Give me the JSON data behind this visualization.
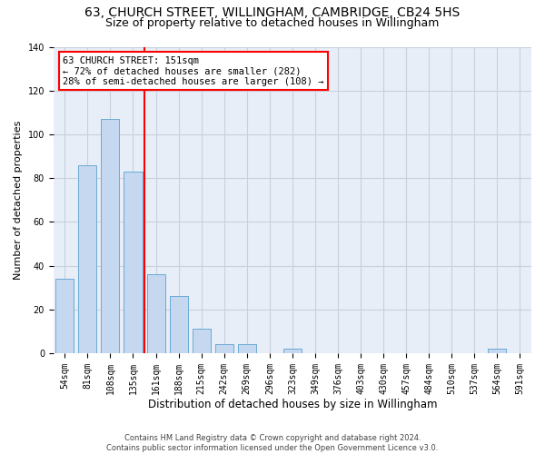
{
  "title1": "63, CHURCH STREET, WILLINGHAM, CAMBRIDGE, CB24 5HS",
  "title2": "Size of property relative to detached houses in Willingham",
  "xlabel": "Distribution of detached houses by size in Willingham",
  "ylabel": "Number of detached properties",
  "footer1": "Contains HM Land Registry data © Crown copyright and database right 2024.",
  "footer2": "Contains public sector information licensed under the Open Government Licence v3.0.",
  "bar_labels": [
    "54sqm",
    "81sqm",
    "108sqm",
    "135sqm",
    "161sqm",
    "188sqm",
    "215sqm",
    "242sqm",
    "269sqm",
    "296sqm",
    "323sqm",
    "349sqm",
    "376sqm",
    "403sqm",
    "430sqm",
    "457sqm",
    "484sqm",
    "510sqm",
    "537sqm",
    "564sqm",
    "591sqm"
  ],
  "bar_values": [
    34,
    86,
    107,
    83,
    36,
    26,
    11,
    4,
    4,
    0,
    2,
    0,
    0,
    0,
    0,
    0,
    0,
    0,
    0,
    2,
    0
  ],
  "bar_color": "#c5d8f0",
  "bar_edge_color": "#6aaad4",
  "annotation_box_text": "63 CHURCH STREET: 151sqm\n← 72% of detached houses are smaller (282)\n28% of semi-detached houses are larger (108) →",
  "annotation_box_color": "white",
  "annotation_box_edgecolor": "red",
  "vline_color": "red",
  "vline_x_index": 3.5,
  "ylim": [
    0,
    140
  ],
  "yticks": [
    0,
    20,
    40,
    60,
    80,
    100,
    120,
    140
  ],
  "grid_color": "#c8d0dc",
  "bg_color": "#e8eef8",
  "title1_fontsize": 10,
  "title2_fontsize": 9,
  "xlabel_fontsize": 8.5,
  "ylabel_fontsize": 8,
  "tick_fontsize": 7,
  "annotation_fontsize": 7.5,
  "footer_fontsize": 6
}
